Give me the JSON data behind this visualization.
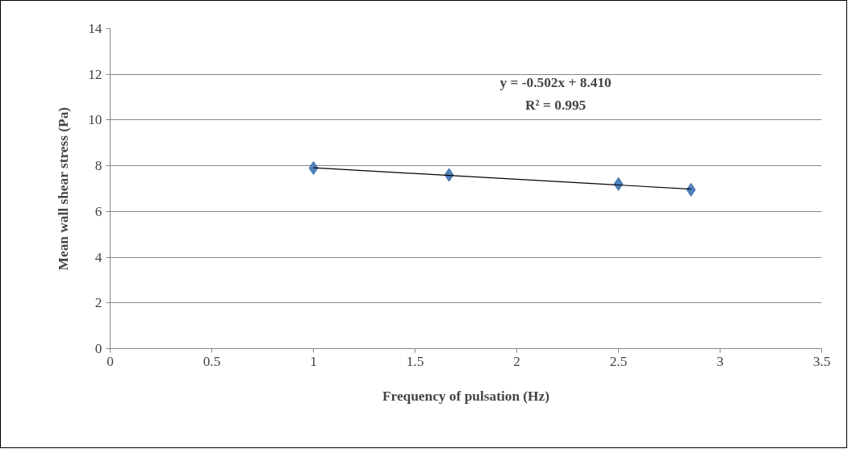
{
  "chart_data": {
    "type": "scatter",
    "xlabel": "Frequency of pulsation (Hz)",
    "ylabel": "Mean wall shear stress (Pa)",
    "xlim": [
      0,
      3.5
    ],
    "xticks": [
      0,
      0.5,
      1,
      1.5,
      2,
      2.5,
      3,
      3.5
    ],
    "ylim": [
      0,
      14
    ],
    "yticks": [
      0,
      2,
      4,
      6,
      8,
      10,
      12,
      14
    ],
    "grid": "y",
    "series": [
      {
        "color": "#4f81bd",
        "marker": "diamond",
        "x": [
          1,
          1.667,
          2.5,
          2.857
        ],
        "values": [
          7.9,
          7.6,
          7.2,
          6.95
        ]
      },
      {
        "type": "line",
        "color": "#000000",
        "x": [
          1,
          2.857
        ],
        "values": [
          7.91,
          6.98
        ]
      }
    ],
    "annotations": [
      "y = -0.502x + 8.410",
      "R² = 0.995"
    ]
  }
}
